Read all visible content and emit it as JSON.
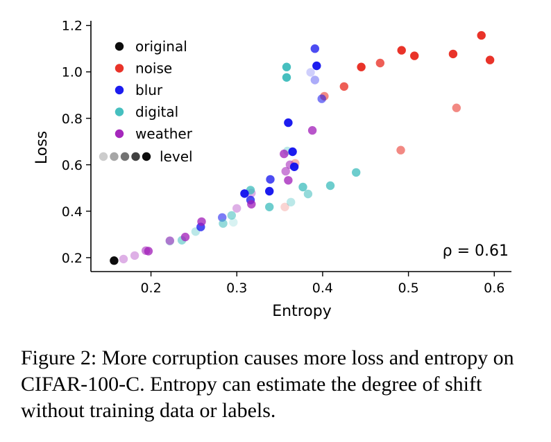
{
  "chart_data": {
    "type": "scatter",
    "xlabel": "Entropy",
    "ylabel": "Loss",
    "xlim": [
      0.13,
      0.62
    ],
    "ylim": [
      0.14,
      1.22
    ],
    "x_ticks": [
      0.2,
      0.3,
      0.4,
      0.5,
      0.6
    ],
    "x_tick_labels": [
      "0.2",
      "0.3",
      "0.4",
      "0.5",
      "0.6"
    ],
    "y_ticks": [
      0.2,
      0.4,
      0.6,
      0.8,
      1.0,
      1.2
    ],
    "y_tick_labels": [
      "0.2",
      "0.4",
      "0.6",
      "0.8",
      "1.0",
      "1.2"
    ],
    "annotation": "ρ = 0.61",
    "annotation_position": "bottom-right",
    "legend_position": "top-left",
    "legend": [
      {
        "label": "original",
        "color": "#000000"
      },
      {
        "label": "noise",
        "color": "#e8281e"
      },
      {
        "label": "blur",
        "color": "#1010ee"
      },
      {
        "label": "digital",
        "color": "#3cbcbc"
      },
      {
        "label": "weather",
        "color": "#a01cb8"
      }
    ],
    "level_legend": {
      "label": "level",
      "color": "#000000",
      "levels": [
        1,
        2,
        3,
        4,
        5
      ]
    },
    "series": [
      {
        "name": "original",
        "color": "#000000",
        "points": [
          {
            "x": 0.157,
            "y": 0.187,
            "level": 5
          }
        ]
      },
      {
        "name": "noise",
        "color": "#e8281e",
        "points": [
          {
            "x": 0.356,
            "y": 0.418,
            "level": 1
          },
          {
            "x": 0.368,
            "y": 0.606,
            "level": 2
          },
          {
            "x": 0.402,
            "y": 0.895,
            "level": 3
          },
          {
            "x": 0.425,
            "y": 0.937,
            "level": 4
          },
          {
            "x": 0.445,
            "y": 1.021,
            "level": 5
          },
          {
            "x": 0.467,
            "y": 1.038,
            "level": 4
          },
          {
            "x": 0.491,
            "y": 0.663,
            "level": 3
          },
          {
            "x": 0.492,
            "y": 1.093,
            "level": 5
          },
          {
            "x": 0.507,
            "y": 1.069,
            "level": 5
          },
          {
            "x": 0.552,
            "y": 1.077,
            "level": 5
          },
          {
            "x": 0.556,
            "y": 0.845,
            "level": 3
          },
          {
            "x": 0.585,
            "y": 1.157,
            "level": 5
          },
          {
            "x": 0.595,
            "y": 1.051,
            "level": 5
          }
        ]
      },
      {
        "name": "blur",
        "color": "#1010ee",
        "points": [
          {
            "x": 0.258,
            "y": 0.332,
            "level": 4
          },
          {
            "x": 0.283,
            "y": 0.373,
            "level": 3
          },
          {
            "x": 0.309,
            "y": 0.476,
            "level": 5
          },
          {
            "x": 0.316,
            "y": 0.448,
            "level": 4
          },
          {
            "x": 0.338,
            "y": 0.486,
            "level": 5
          },
          {
            "x": 0.339,
            "y": 0.537,
            "level": 4
          },
          {
            "x": 0.36,
            "y": 0.781,
            "level": 5
          },
          {
            "x": 0.365,
            "y": 0.656,
            "level": 5
          },
          {
            "x": 0.367,
            "y": 0.591,
            "level": 5
          },
          {
            "x": 0.386,
            "y": 0.998,
            "level": 1
          },
          {
            "x": 0.391,
            "y": 0.965,
            "level": 2
          },
          {
            "x": 0.391,
            "y": 1.1,
            "level": 4
          },
          {
            "x": 0.393,
            "y": 1.026,
            "level": 5
          },
          {
            "x": 0.399,
            "y": 0.884,
            "level": 3
          }
        ]
      },
      {
        "name": "digital",
        "color": "#3cbcbc",
        "points": [
          {
            "x": 0.222,
            "y": 0.271,
            "level": 2
          },
          {
            "x": 0.236,
            "y": 0.275,
            "level": 3
          },
          {
            "x": 0.252,
            "y": 0.312,
            "level": 2
          },
          {
            "x": 0.284,
            "y": 0.347,
            "level": 3
          },
          {
            "x": 0.294,
            "y": 0.382,
            "level": 3
          },
          {
            "x": 0.296,
            "y": 0.352,
            "level": 1
          },
          {
            "x": 0.316,
            "y": 0.491,
            "level": 4
          },
          {
            "x": 0.338,
            "y": 0.418,
            "level": 4
          },
          {
            "x": 0.358,
            "y": 1.021,
            "level": 5
          },
          {
            "x": 0.358,
            "y": 0.976,
            "level": 5
          },
          {
            "x": 0.359,
            "y": 0.659,
            "level": 2
          },
          {
            "x": 0.363,
            "y": 0.439,
            "level": 2
          },
          {
            "x": 0.377,
            "y": 0.504,
            "level": 4
          },
          {
            "x": 0.383,
            "y": 0.474,
            "level": 3
          },
          {
            "x": 0.409,
            "y": 0.51,
            "level": 4
          },
          {
            "x": 0.439,
            "y": 0.567,
            "level": 4
          }
        ]
      },
      {
        "name": "weather",
        "color": "#a01cb8",
        "points": [
          {
            "x": 0.168,
            "y": 0.194,
            "level": 2
          },
          {
            "x": 0.181,
            "y": 0.209,
            "level": 2
          },
          {
            "x": 0.194,
            "y": 0.23,
            "level": 3
          },
          {
            "x": 0.197,
            "y": 0.228,
            "level": 4
          },
          {
            "x": 0.222,
            "y": 0.273,
            "level": 3
          },
          {
            "x": 0.24,
            "y": 0.289,
            "level": 4
          },
          {
            "x": 0.259,
            "y": 0.355,
            "level": 4
          },
          {
            "x": 0.3,
            "y": 0.412,
            "level": 2
          },
          {
            "x": 0.317,
            "y": 0.43,
            "level": 4
          },
          {
            "x": 0.317,
            "y": 0.478,
            "level": 2
          },
          {
            "x": 0.355,
            "y": 0.647,
            "level": 4
          },
          {
            "x": 0.357,
            "y": 0.572,
            "level": 3
          },
          {
            "x": 0.36,
            "y": 0.533,
            "level": 4
          },
          {
            "x": 0.362,
            "y": 0.6,
            "level": 3
          },
          {
            "x": 0.388,
            "y": 0.748,
            "level": 4
          }
        ]
      }
    ]
  },
  "caption": {
    "text": "Figure 2: More corruption causes more loss and entropy on CIFAR-100-C. Entropy can estimate the degree of shift without training data or labels."
  }
}
